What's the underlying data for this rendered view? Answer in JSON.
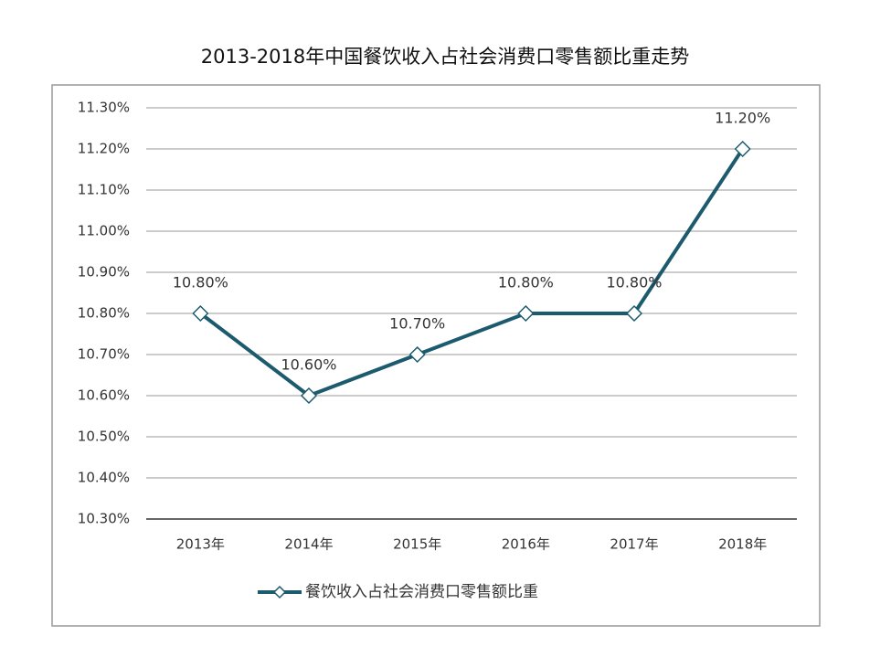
{
  "chart_data": {
    "type": "line",
    "title": "2013-2018年中国餐饮收入占社会消费口零售额比重走势",
    "categories": [
      "2013年",
      "2014年",
      "2015年",
      "2016年",
      "2017年",
      "2018年"
    ],
    "series": [
      {
        "name": "餐饮收入占社会消费口零售额比重",
        "color": "#1c5a6e",
        "values": [
          10.8,
          10.6,
          10.7,
          10.8,
          10.8,
          11.2
        ],
        "value_labels": [
          "10.80%",
          "10.60%",
          "10.70%",
          "10.80%",
          "10.80%",
          "11.20%"
        ]
      }
    ],
    "ylim": [
      10.3,
      11.3
    ],
    "yticks": [
      {
        "value": 10.3,
        "label": "10.30%"
      },
      {
        "value": 10.4,
        "label": "10.40%"
      },
      {
        "value": 10.5,
        "label": "10.50%"
      },
      {
        "value": 10.6,
        "label": "10.60%"
      },
      {
        "value": 10.7,
        "label": "10.70%"
      },
      {
        "value": 10.8,
        "label": "10.80%"
      },
      {
        "value": 10.9,
        "label": "10.90%"
      },
      {
        "value": 11.0,
        "label": "11.00%"
      },
      {
        "value": 11.1,
        "label": "11.10%"
      },
      {
        "value": 11.2,
        "label": "11.20%"
      },
      {
        "value": 11.3,
        "label": "11.30%"
      }
    ],
    "grid": true,
    "legend": "bottom"
  }
}
